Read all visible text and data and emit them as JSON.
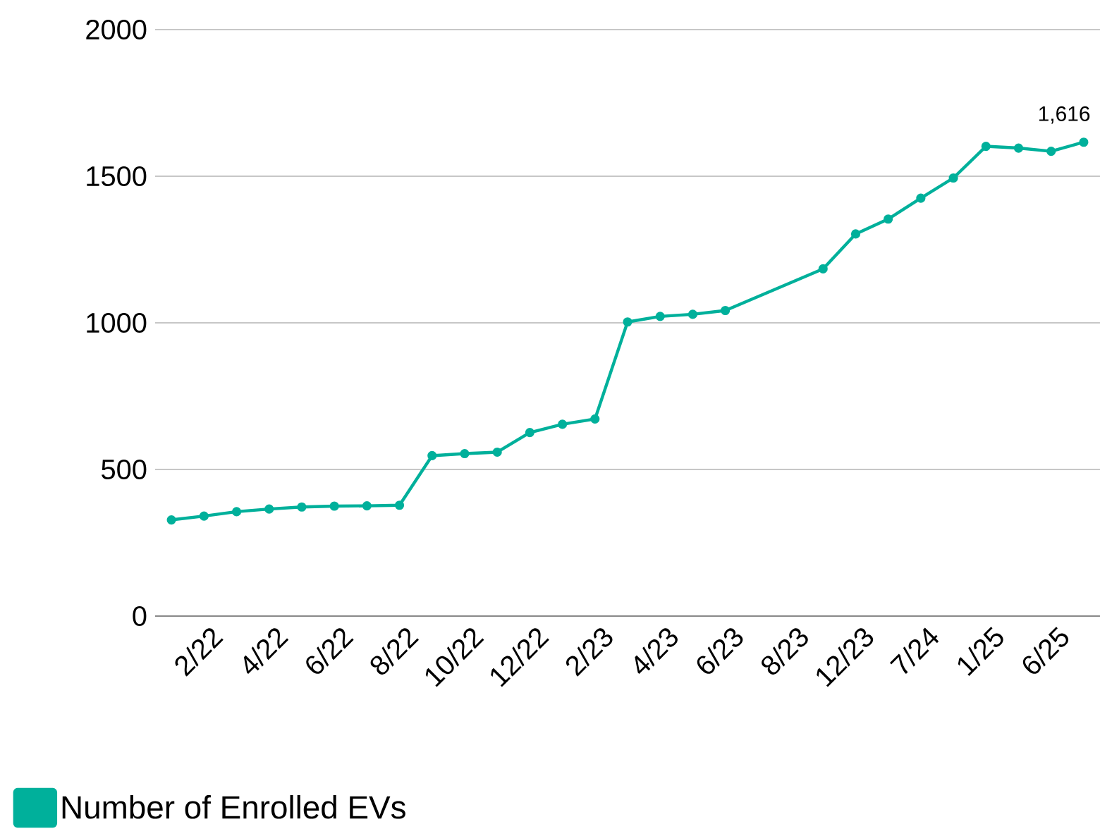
{
  "chart_data": {
    "type": "line",
    "categories": [
      null,
      "2/22",
      null,
      "4/22",
      null,
      "6/22",
      null,
      "8/22",
      null,
      "10/22",
      null,
      "12/22",
      null,
      "2/23",
      null,
      "4/23",
      null,
      "6/23",
      null,
      "8/23",
      null,
      "12/23",
      null,
      "7/24",
      null,
      "1/25",
      null,
      "6/25",
      null
    ],
    "series": [
      {
        "name": "Number of Enrolled EVs",
        "color": "#00b09b",
        "values": [
          328,
          341,
          356,
          365,
          372,
          375,
          376,
          378,
          547,
          554,
          559,
          626,
          654,
          672,
          1003,
          1022,
          1029,
          1042,
          null,
          null,
          1184,
          1303,
          1354,
          1425,
          1494,
          1602,
          1596,
          1585,
          1616
        ],
        "value_labels": [
          null,
          null,
          null,
          null,
          null,
          null,
          null,
          null,
          null,
          null,
          null,
          null,
          null,
          null,
          null,
          null,
          null,
          null,
          null,
          null,
          null,
          null,
          null,
          null,
          null,
          null,
          null,
          null,
          "1,616"
        ]
      }
    ],
    "ylim": [
      0,
      2000
    ],
    "yticks": [
      0,
      500,
      1000,
      1500,
      2000
    ],
    "grid": "y",
    "legend": "bottom",
    "marker": "circle",
    "line_style": "solid"
  }
}
